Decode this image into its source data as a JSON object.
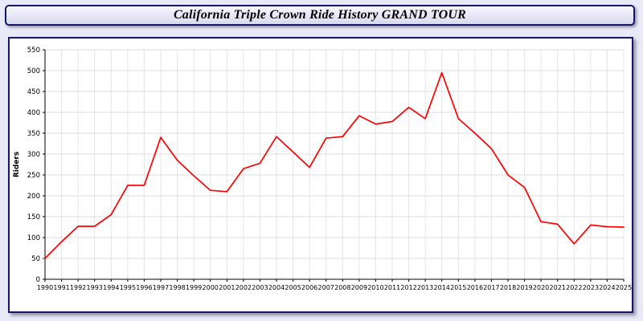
{
  "header": {
    "title": "California Triple Crown Ride History GRAND TOUR"
  },
  "colors": {
    "line": "#ff0000",
    "grid_h": "#dcdcdc",
    "grid_v": "#e6e6e6",
    "axis": "#000000",
    "page_bg": "#e9e9f7",
    "panel_border": "#16166b",
    "plot_bg": "#ffffff"
  },
  "chart_data": {
    "type": "line",
    "title": "California Triple Crown Ride History GRAND TOUR",
    "xlabel": "",
    "ylabel": "Riders",
    "ylim": [
      0,
      550
    ],
    "ytick_step": 50,
    "grid": true,
    "legend": "none",
    "categories": [
      "1990",
      "1991",
      "1992",
      "1993",
      "1994",
      "1995",
      "1996",
      "1997",
      "1998",
      "1999",
      "2000",
      "2001",
      "2002",
      "2003",
      "2004",
      "2005",
      "2006",
      "2007",
      "2008",
      "2009",
      "2010",
      "2011",
      "2012",
      "2013",
      "2014",
      "2015",
      "2016",
      "2017",
      "2018",
      "2019",
      "2020",
      "2021",
      "2022",
      "2023",
      "2024",
      "2025"
    ],
    "series": [
      {
        "name": "Riders",
        "color": "#ff0000",
        "values": [
          50,
          90,
          127,
          127,
          155,
          225,
          225,
          340,
          285,
          248,
          213,
          210,
          265,
          278,
          342,
          305,
          268,
          338,
          342,
          392,
          372,
          378,
          412,
          385,
          495,
          385,
          350,
          313,
          250,
          220,
          138,
          132,
          85,
          130,
          126,
          125
        ]
      }
    ]
  }
}
